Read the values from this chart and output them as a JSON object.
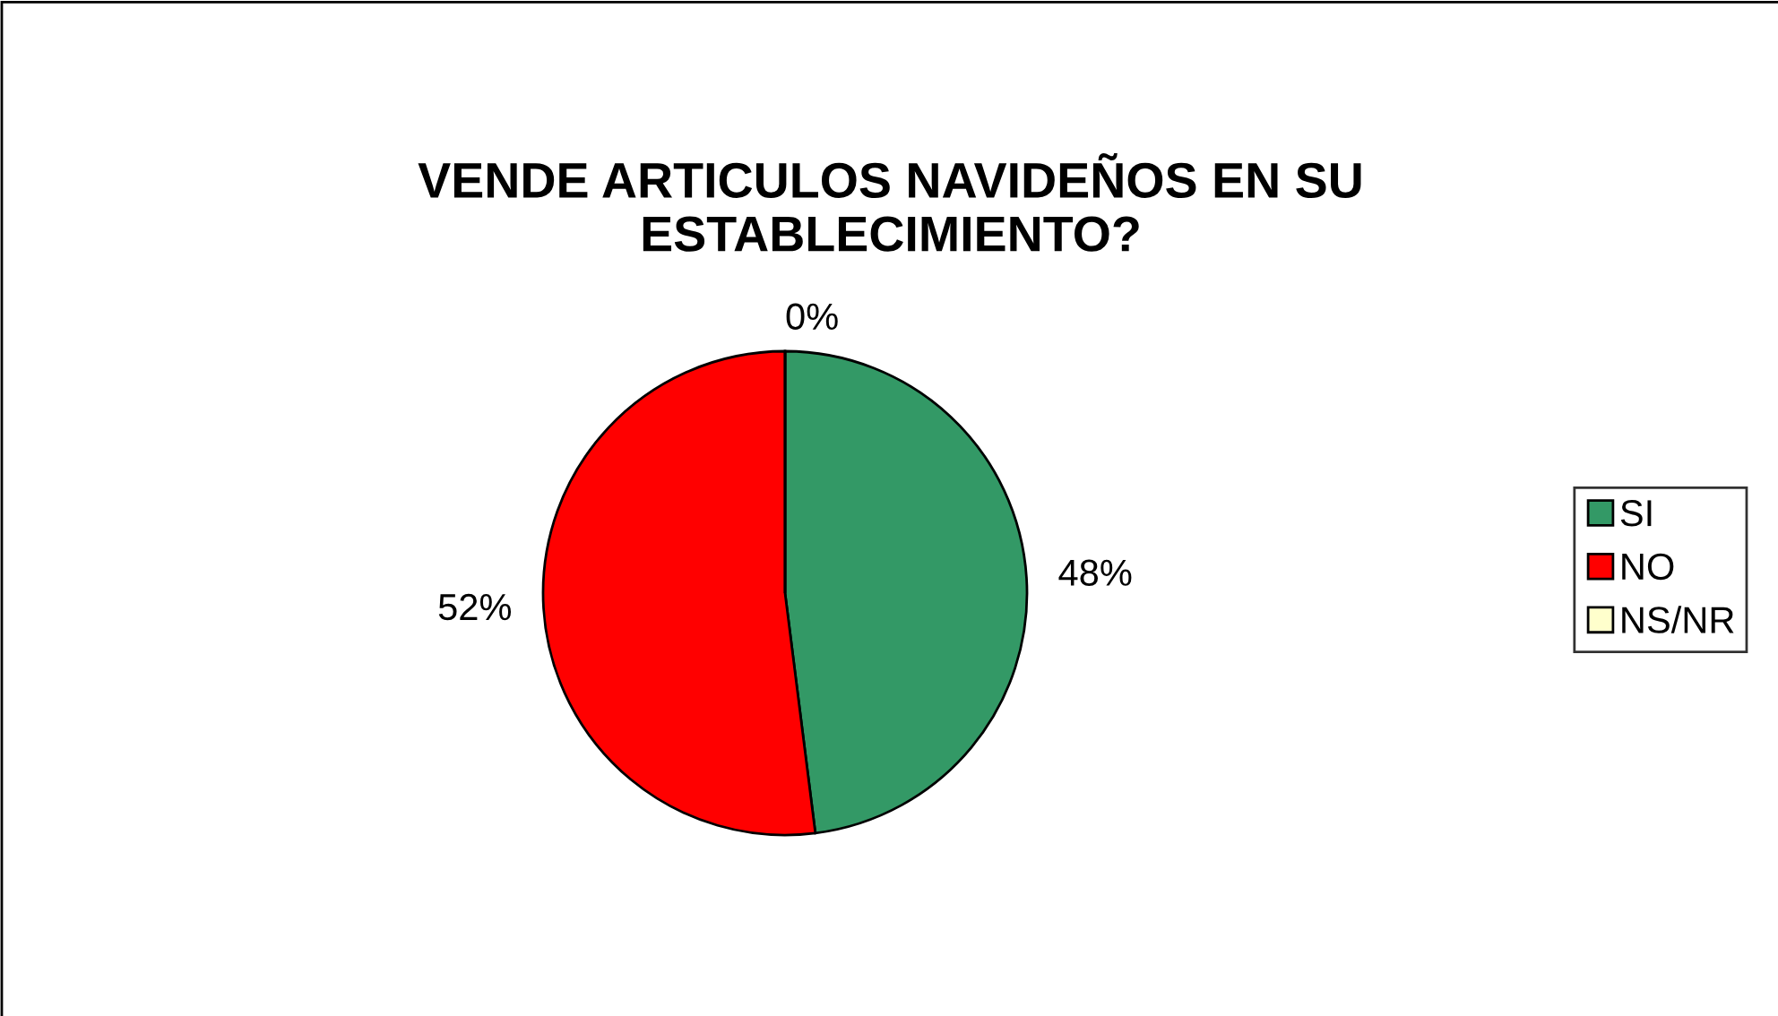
{
  "chart_data": {
    "type": "pie",
    "title": "VENDE ARTICULOS NAVIDEÑOS EN SU ESTABLECIMIENTO?",
    "categories": [
      "SI",
      "NO",
      "NS/NR"
    ],
    "values": [
      48,
      52,
      0
    ],
    "colors": [
      "#339966",
      "#ff0000",
      "#ffffcc"
    ],
    "value_labels": [
      "48%",
      "52%",
      "0%"
    ],
    "legend": "right"
  }
}
